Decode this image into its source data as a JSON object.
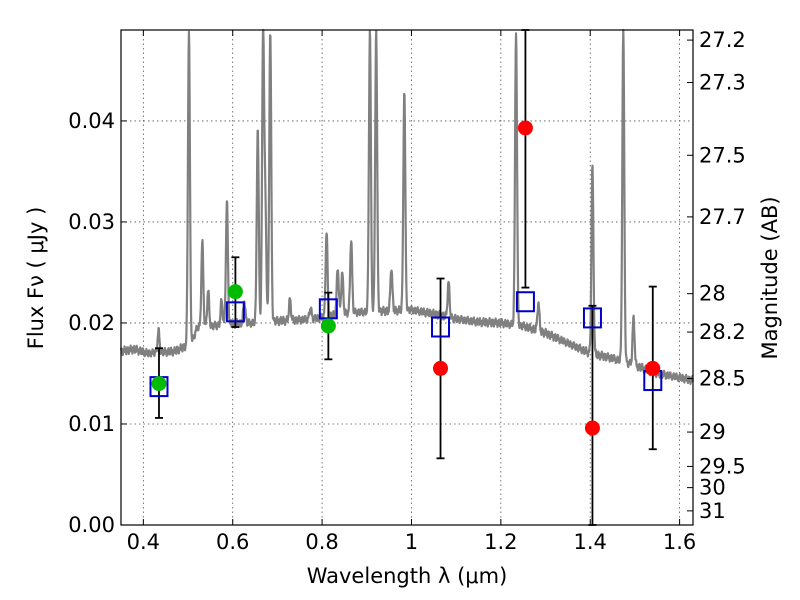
{
  "chart_data": {
    "type": "scatter",
    "xlabel": "Wavelength  λ (μm)",
    "ylabel": "Flux  Fν  ( μJy )",
    "ylabel_right": "Magnitude (AB)",
    "xlim": [
      0.35,
      1.63
    ],
    "ylim": [
      0.0,
      0.049
    ],
    "grid": true,
    "x_ticks": [
      {
        "value": 0.4,
        "label": "0.4"
      },
      {
        "value": 0.6,
        "label": "0.6"
      },
      {
        "value": 0.8,
        "label": "0.8"
      },
      {
        "value": 1.0,
        "label": "1"
      },
      {
        "value": 1.2,
        "label": "1.2"
      },
      {
        "value": 1.4,
        "label": "1.4"
      },
      {
        "value": 1.6,
        "label": "1.6"
      }
    ],
    "y_ticks": [
      {
        "value": 0.0,
        "label": "0.00"
      },
      {
        "value": 0.01,
        "label": "0.01"
      },
      {
        "value": 0.02,
        "label": "0.02"
      },
      {
        "value": 0.03,
        "label": "0.03"
      },
      {
        "value": 0.04,
        "label": "0.04"
      }
    ],
    "right_ticks": [
      {
        "flux": 0.048,
        "label": "27.2"
      },
      {
        "flux": 0.0438,
        "label": "27.3"
      },
      {
        "flux": 0.0366,
        "label": "27.5"
      },
      {
        "flux": 0.0305,
        "label": "27.7"
      },
      {
        "flux": 0.0229,
        "label": "28"
      },
      {
        "flux": 0.0191,
        "label": "28.2"
      },
      {
        "flux": 0.0145,
        "label": "28.5"
      },
      {
        "flux": 0.0092,
        "label": "29"
      },
      {
        "flux": 0.0058,
        "label": "29.5"
      },
      {
        "flux": 0.0037,
        "label": "30"
      },
      {
        "flux": 0.0014,
        "label": "31"
      }
    ],
    "colors": {
      "model": "#808080",
      "model_points": "#0000cc",
      "detections": "#00bb00",
      "upper_or_low": "#ff0000",
      "errorbars": "#000000",
      "grid": "#555555"
    },
    "model_photometry": [
      {
        "x": 0.435,
        "y": 0.0137
      },
      {
        "x": 0.606,
        "y": 0.0211
      },
      {
        "x": 0.814,
        "y": 0.0214
      },
      {
        "x": 1.065,
        "y": 0.0196
      },
      {
        "x": 1.255,
        "y": 0.0221
      },
      {
        "x": 1.405,
        "y": 0.0205
      },
      {
        "x": 1.54,
        "y": 0.0143
      }
    ],
    "observed_detections": [
      {
        "x": 0.435,
        "y": 0.014,
        "err_low": 0.0106,
        "err_high": 0.0175
      },
      {
        "x": 0.606,
        "y": 0.0231,
        "err_low": 0.0196,
        "err_high": 0.0265
      },
      {
        "x": 0.814,
        "y": 0.0197,
        "err_low": 0.0164,
        "err_high": 0.023
      }
    ],
    "observed_low_sn": [
      {
        "x": 1.065,
        "y": 0.0155,
        "err_low": 0.0066,
        "err_high": 0.0244
      },
      {
        "x": 1.255,
        "y": 0.0393,
        "err_low": 0.0235,
        "err_high": 0.049
      },
      {
        "x": 1.405,
        "y": 0.0096,
        "err_low": 0.0,
        "err_high": 0.0217
      },
      {
        "x": 1.54,
        "y": 0.0155,
        "err_low": 0.0075,
        "err_high": 0.0236
      }
    ],
    "model_spectrum": {
      "continuum": [
        [
          0.35,
          0.0172
        ],
        [
          0.38,
          0.0174
        ],
        [
          0.41,
          0.017
        ],
        [
          0.44,
          0.0171
        ],
        [
          0.47,
          0.0172
        ],
        [
          0.495,
          0.0177
        ],
        [
          0.51,
          0.0183
        ],
        [
          0.52,
          0.0195
        ],
        [
          0.55,
          0.0197
        ],
        [
          0.58,
          0.0198
        ],
        [
          0.62,
          0.02
        ],
        [
          0.66,
          0.02
        ],
        [
          0.7,
          0.0202
        ],
        [
          0.75,
          0.0203
        ],
        [
          0.8,
          0.0205
        ],
        [
          0.85,
          0.021
        ],
        [
          0.9,
          0.0211
        ],
        [
          0.95,
          0.0212
        ],
        [
          1.0,
          0.0213
        ],
        [
          1.05,
          0.0209
        ],
        [
          1.1,
          0.0204
        ],
        [
          1.15,
          0.0201
        ],
        [
          1.2,
          0.02
        ],
        [
          1.25,
          0.0197
        ],
        [
          1.3,
          0.019
        ],
        [
          1.35,
          0.018
        ],
        [
          1.4,
          0.017
        ],
        [
          1.45,
          0.0165
        ],
        [
          1.5,
          0.0158
        ],
        [
          1.55,
          0.015
        ],
        [
          1.6,
          0.0146
        ],
        [
          1.63,
          0.0143
        ]
      ],
      "lines": [
        {
          "x": 0.434,
          "peak": 0.0192
        },
        {
          "x": 0.502,
          "peak": 0.049
        },
        {
          "x": 0.532,
          "peak": 0.028
        },
        {
          "x": 0.545,
          "peak": 0.0232
        },
        {
          "x": 0.575,
          "peak": 0.0222
        },
        {
          "x": 0.587,
          "peak": 0.032
        },
        {
          "x": 0.626,
          "peak": 0.0222
        },
        {
          "x": 0.656,
          "peak": 0.0393
        },
        {
          "x": 0.668,
          "peak": 0.049
        },
        {
          "x": 0.673,
          "peak": 0.0315
        },
        {
          "x": 0.684,
          "peak": 0.049
        },
        {
          "x": 0.728,
          "peak": 0.0223
        },
        {
          "x": 0.774,
          "peak": 0.0215
        },
        {
          "x": 0.81,
          "peak": 0.029
        },
        {
          "x": 0.835,
          "peak": 0.0255
        },
        {
          "x": 0.845,
          "peak": 0.025
        },
        {
          "x": 0.865,
          "peak": 0.0283
        },
        {
          "x": 0.907,
          "peak": 0.049
        },
        {
          "x": 0.921,
          "peak": 0.049
        },
        {
          "x": 0.955,
          "peak": 0.0255
        },
        {
          "x": 0.984,
          "peak": 0.043
        },
        {
          "x": 1.083,
          "peak": 0.024
        },
        {
          "x": 1.234,
          "peak": 0.049
        },
        {
          "x": 1.284,
          "peak": 0.022
        },
        {
          "x": 1.405,
          "peak": 0.0355
        },
        {
          "x": 1.474,
          "peak": 0.049
        },
        {
          "x": 1.497,
          "peak": 0.0205
        }
      ]
    }
  }
}
